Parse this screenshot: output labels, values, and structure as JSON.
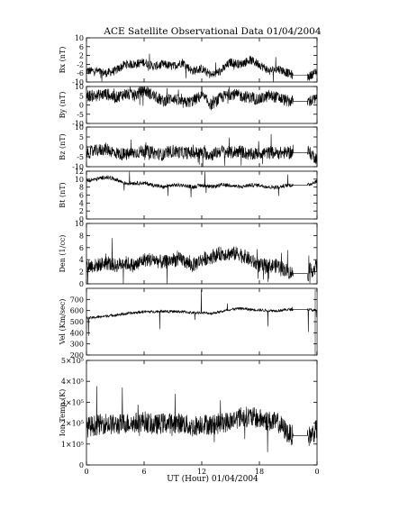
{
  "chart_data": {
    "title": "ACE Satellite Observational Data   01/04/2004",
    "xlabel": "UT (Hour)   01/04/2004",
    "x_tick_labels": [
      "0",
      "6",
      "12",
      "18",
      "0"
    ],
    "x_ticks_hours": [
      0,
      6,
      12,
      18,
      24
    ],
    "xlim": [
      0,
      24
    ],
    "data_gap_hours": [
      21.5,
      23.0
    ],
    "panels": [
      {
        "type": "line",
        "ylabel": "Bx (nT)",
        "ylim": [
          -10,
          10
        ],
        "ytick_values": [
          10,
          6,
          2,
          -2,
          -6,
          -10
        ],
        "ytick_labels": [
          "10",
          "6",
          "2",
          "-2",
          "-6",
          "-10"
        ],
        "series": [
          {
            "x": [
              0,
              1,
              2,
              3,
              4,
              5,
              6,
              7,
              8,
              9,
              10,
              11,
              12,
              13,
              14,
              15,
              16,
              17,
              18,
              19,
              20,
              21,
              22,
              23,
              24
            ],
            "values": [
              -5,
              -5,
              -6,
              -5,
              -2,
              -2,
              -1,
              -3,
              -2,
              -3,
              -1,
              -5,
              -4,
              -7,
              -5,
              -1,
              -2,
              0,
              -2,
              -5,
              -4,
              -6,
              -8,
              -8,
              -5
            ]
          }
        ]
      },
      {
        "type": "line",
        "ylabel": "By (nT)",
        "ylim": [
          -10,
          10
        ],
        "ytick_values": [
          10,
          5,
          0,
          -5,
          -10
        ],
        "ytick_labels": [
          "10",
          "5",
          "0",
          "-5",
          "-10"
        ],
        "series": [
          {
            "x": [
              0,
              1,
              2,
              3,
              4,
              5,
              6,
              7,
              8,
              9,
              10,
              11,
              12,
              13,
              14,
              15,
              16,
              17,
              18,
              19,
              20,
              21,
              22,
              23,
              24
            ],
            "values": [
              5,
              5,
              6,
              4,
              6,
              5,
              8,
              5,
              2,
              4,
              1,
              2,
              5,
              0,
              4,
              6,
              5,
              4,
              3,
              5,
              4,
              2,
              2,
              2,
              3
            ]
          }
        ]
      },
      {
        "type": "line",
        "ylabel": "Bz (nT)",
        "ylim": [
          -10,
          10
        ],
        "ytick_values": [
          10,
          5,
          0,
          -5,
          -10
        ],
        "ytick_labels": [
          "10",
          "5",
          "0",
          "-5",
          "-10"
        ],
        "series": [
          {
            "x": [
              0,
              1,
              2,
              3,
              4,
              5,
              6,
              7,
              8,
              9,
              10,
              11,
              12,
              13,
              14,
              15,
              16,
              17,
              18,
              19,
              20,
              21,
              22,
              23,
              24
            ],
            "values": [
              -3,
              -2,
              -1,
              -3,
              -4,
              -3,
              -2,
              -3,
              -4,
              -2,
              -3,
              -3,
              -3,
              -4,
              -2,
              -3,
              -2,
              -4,
              -3,
              -3,
              -3,
              -3,
              -3,
              -2,
              -6
            ]
          }
        ]
      },
      {
        "type": "line",
        "ylabel": "Bt (nT)",
        "ylim": [
          0,
          12
        ],
        "ytick_values": [
          12,
          10,
          8,
          6,
          4,
          2,
          0
        ],
        "ytick_labels": [
          "12",
          "10",
          "8",
          "6",
          "4",
          "2",
          "0"
        ],
        "series": [
          {
            "x": [
              0,
              1,
              2,
              3,
              4,
              5,
              6,
              7,
              8,
              9,
              10,
              11,
              12,
              13,
              14,
              15,
              16,
              17,
              18,
              19,
              20,
              21,
              22,
              23,
              24
            ],
            "values": [
              9.5,
              10,
              10.5,
              10,
              9,
              9,
              9,
              8.5,
              8,
              8.5,
              8.5,
              8,
              8.5,
              8,
              8.5,
              8.5,
              8,
              8.5,
              8.5,
              8,
              8,
              8.5,
              8.5,
              8.5,
              9.5
            ]
          }
        ]
      },
      {
        "type": "line",
        "ylabel": "Den (1/cc)",
        "ylim": [
          0,
          10
        ],
        "ytick_values": [
          10,
          8,
          6,
          4,
          2,
          0
        ],
        "ytick_labels": [
          "10",
          "8",
          "6",
          "4",
          "2",
          "0"
        ],
        "series": [
          {
            "x": [
              0,
              1,
              2,
              3,
              4,
              5,
              6,
              7,
              8,
              9,
              10,
              11,
              12,
              13,
              14,
              15,
              16,
              17,
              18,
              19,
              20,
              21,
              22,
              23,
              24
            ],
            "values": [
              3,
              3,
              3.5,
              3,
              3.5,
              3,
              4,
              4,
              3.5,
              4,
              4,
              3,
              4,
              4.5,
              5,
              5,
              5,
              4,
              3,
              3,
              3,
              2,
              1.5,
              1.5,
              3
            ]
          }
        ]
      },
      {
        "type": "line",
        "ylabel": "Vel (Km/sec)",
        "ylim": [
          200,
          800
        ],
        "ytick_values": [
          700,
          600,
          500,
          400,
          300,
          200
        ],
        "ytick_labels": [
          "700",
          "600",
          "500",
          "400",
          "300",
          "200"
        ],
        "series": [
          {
            "x": [
              0,
              1,
              2,
              3,
              4,
              5,
              6,
              7,
              8,
              9,
              10,
              11,
              12,
              13,
              14,
              15,
              16,
              17,
              18,
              19,
              20,
              21,
              22,
              23,
              24
            ],
            "values": [
              530,
              540,
              550,
              560,
              570,
              580,
              590,
              590,
              595,
              590,
              590,
              580,
              580,
              575,
              590,
              610,
              620,
              610,
              605,
              600,
              600,
              610,
              610,
              610,
              600
            ]
          }
        ]
      },
      {
        "type": "line",
        "ylabel": "Ion Temp (K)",
        "ylim": [
          0,
          500000
        ],
        "ytick_values": [
          500000,
          400000,
          300000,
          200000,
          100000,
          0
        ],
        "ytick_labels": [
          "5×10⁵",
          "4×10⁵",
          "3×10⁵",
          "2×10⁵",
          "1×10⁵",
          "0"
        ],
        "series": [
          {
            "x": [
              0,
              1,
              2,
              3,
              4,
              5,
              6,
              7,
              8,
              9,
              10,
              11,
              12,
              13,
              14,
              15,
              16,
              17,
              18,
              19,
              20,
              21,
              22,
              23,
              24
            ],
            "values": [
              180000,
              190000,
              200000,
              190000,
              200000,
              200000,
              210000,
              190000,
              200000,
              200000,
              200000,
              180000,
              200000,
              190000,
              200000,
              210000,
              230000,
              230000,
              220000,
              210000,
              200000,
              150000,
              130000,
              130000,
              170000
            ]
          }
        ]
      }
    ]
  }
}
